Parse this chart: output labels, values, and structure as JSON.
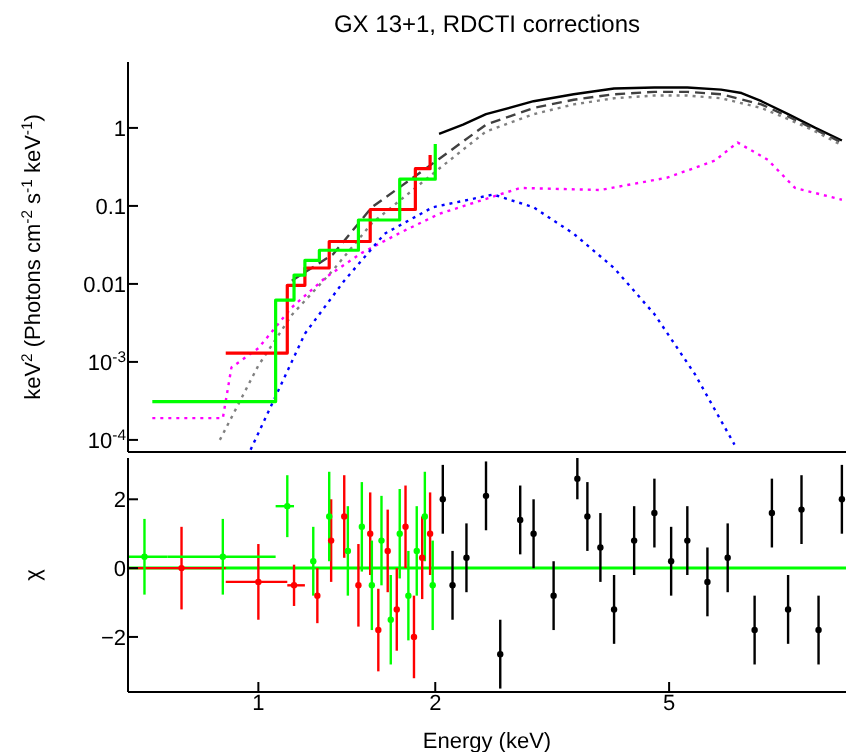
{
  "chart_data": [
    {
      "type": "line",
      "title": "GX 13+1, RDCTI corrections",
      "ylabel": "keV$^{2}$ (Photons cm$^{-2}$ s$^{-1}$ keV$^{-1}$)",
      "log": "xy",
      "xlim": [
        0.6,
        10
      ],
      "xticks": [
        1,
        2,
        5
      ],
      "ylim": [
        7e-05,
        7
      ],
      "yticks": [
        {
          "value": 0.0001,
          "label": "10$^{-4}$"
        },
        {
          "value": 0.001,
          "label": "10$^{-3}$"
        },
        0.01,
        0.1,
        1
      ],
      "tick_labels": "y",
      "marker": "none",
      "series": [
        {
          "color": "#000000",
          "line_style": "solid",
          "x": [
            2.03,
            2.23,
            2.44,
            2.94,
            3.44,
            4.03,
            4.72,
            5.37,
            6.13,
            6.64,
            7.18,
            7.97,
            8.87,
            9.84
          ],
          "values": [
            0.84,
            1.1,
            1.5,
            2.2,
            2.7,
            3.2,
            3.3,
            3.3,
            3.1,
            2.8,
            2.2,
            1.5,
            1.0,
            0.69
          ]
        },
        {
          "color": "#404040",
          "line_style": "dashed",
          "x": [
            1.14,
            1.34,
            1.56,
            2.03,
            2.44,
            2.94,
            3.44,
            4.03,
            4.72,
            5.37,
            6.13,
            7.18,
            7.97,
            8.87,
            9.84
          ],
          "values": [
            0.011,
            0.024,
            0.096,
            0.4,
            1.1,
            1.8,
            2.3,
            2.7,
            2.9,
            2.9,
            2.7,
            2.0,
            1.4,
            0.95,
            0.65
          ]
        },
        {
          "color": "#808080",
          "line_style": "dotted",
          "x": [
            0.86,
            1.0,
            1.14,
            1.34,
            1.56,
            2.03,
            2.44,
            2.94,
            3.44,
            4.03,
            4.72,
            5.37,
            6.13,
            7.18,
            7.97,
            8.87,
            9.84
          ],
          "values": [
            0.0001,
            0.0009,
            0.004,
            0.015,
            0.06,
            0.3,
            0.9,
            1.5,
            2.0,
            2.4,
            2.6,
            2.6,
            2.4,
            1.8,
            1.3,
            0.9,
            0.6
          ]
        },
        {
          "color": "#ff00ff",
          "line_style": "dotted",
          "x": [
            0.66,
            0.87,
            0.9,
            1.0,
            1.14,
            1.3,
            1.5,
            1.74,
            2.03,
            2.79,
            3.82,
            4.96,
            5.98,
            6.54,
            7.36,
            8.19,
            9.84
          ],
          "values": [
            0.00019,
            0.00019,
            0.00085,
            0.0015,
            0.005,
            0.012,
            0.025,
            0.045,
            0.079,
            0.17,
            0.16,
            0.23,
            0.38,
            0.65,
            0.39,
            0.17,
            0.12
          ]
        },
        {
          "color": "#0000ff",
          "line_style": "dotted",
          "x": [
            0.97,
            1.2,
            1.4,
            1.64,
            1.98,
            2.51,
            2.94,
            3.44,
            4.03,
            4.72,
            5.53,
            6.46
          ],
          "values": [
            7.5e-05,
            0.0023,
            0.011,
            0.044,
            0.096,
            0.14,
            0.096,
            0.044,
            0.016,
            0.0041,
            0.0007,
            8.7e-05
          ]
        },
        {
          "type": "step",
          "color": "#ff0000",
          "line_style": "solid",
          "x": [
            0.88,
            1.12,
            1.2,
            1.32,
            1.55,
            1.85,
            1.96
          ],
          "values": [
            0.0013,
            0.0096,
            0.016,
            0.035,
            0.09,
            0.3,
            0.45
          ]
        },
        {
          "type": "step",
          "color": "#00ff00",
          "line_style": "solid",
          "x": [
            0.66,
            1.07,
            1.15,
            1.2,
            1.27,
            1.48,
            1.74,
            2.0
          ],
          "values": [
            0.00031,
            0.0062,
            0.013,
            0.02,
            0.027,
            0.066,
            0.22,
            0.62
          ]
        }
      ]
    },
    {
      "type": "scatter",
      "xlabel": "Energy (keV)",
      "ylabel": "χ",
      "log": "x",
      "xlim": [
        0.6,
        10
      ],
      "xticks": [
        1,
        2,
        5
      ],
      "ylim": [
        -3.6,
        3.2
      ],
      "yticks": [
        {
          "value": -2,
          "label": "−2"
        },
        0,
        2
      ],
      "ref_lines": [
        {
          "axis": "y",
          "value": 0,
          "color": "#00ff00"
        }
      ],
      "series": [
        {
          "color": "#ff0000",
          "x": [
            0.74,
            1.0,
            1.15,
            1.26,
            1.33,
            1.4,
            1.48,
            1.55,
            1.6,
            1.66,
            1.72,
            1.78,
            1.84,
            1.9,
            1.96
          ],
          "values": [
            0,
            -0.4,
            -0.5,
            -0.8,
            0.8,
            1.5,
            -0.5,
            1.0,
            -1.8,
            0.5,
            -1.2,
            1.2,
            -2.0,
            0.3,
            1.0
          ],
          "errors": [
            1.2,
            1.1,
            0.6,
            0.8,
            1.2,
            1.2,
            1.2,
            1.2,
            1.2,
            1.2,
            1.2,
            1.2,
            1.2,
            1.2,
            1.2
          ],
          "xerrors": [
            [
              0.6,
              0.88
            ],
            [
              0.88,
              1.12
            ],
            [
              1.12,
              1.2
            ],
            null,
            null,
            null,
            null,
            null,
            null,
            null,
            null,
            null,
            null,
            null,
            null
          ]
        },
        {
          "color": "#00ff00",
          "x": [
            0.64,
            0.87,
            1.12,
            1.24,
            1.32,
            1.42,
            1.5,
            1.56,
            1.62,
            1.68,
            1.74,
            1.8,
            1.86,
            1.92,
            1.98
          ],
          "values": [
            0.33,
            0.33,
            1.8,
            0.2,
            1.5,
            0.5,
            1.2,
            -0.5,
            0.8,
            -1.5,
            1.0,
            -0.8,
            0.5,
            1.5,
            -0.5
          ],
          "errors": [
            1.1,
            1.1,
            0.9,
            1.0,
            1.3,
            1.3,
            1.3,
            1.3,
            1.3,
            1.3,
            1.3,
            1.3,
            1.3,
            1.3,
            1.3
          ],
          "xerrors": [
            [
              0.6,
              0.7
            ],
            [
              0.7,
              1.07
            ],
            [
              1.07,
              1.15
            ],
            null,
            null,
            null,
            null,
            null,
            null,
            null,
            null,
            null,
            null,
            null,
            null
          ]
        },
        {
          "color": "#000000",
          "x": [
            2.06,
            2.14,
            2.26,
            2.44,
            2.58,
            2.79,
            2.94,
            3.18,
            3.49,
            3.63,
            3.82,
            4.03,
            4.36,
            4.72,
            5.04,
            5.37,
            5.81,
            6.29,
            6.99,
            7.48,
            7.97,
            8.4,
            8.98,
            9.84
          ],
          "values": [
            2.0,
            -0.5,
            0.3,
            2.1,
            -2.5,
            1.4,
            1.0,
            -0.8,
            2.6,
            1.5,
            0.6,
            -1.2,
            0.8,
            1.6,
            0.2,
            0.8,
            -0.4,
            0.3,
            -1.8,
            1.6,
            -1.2,
            1.7,
            -1.8,
            2.0
          ],
          "errors": [
            1,
            1,
            1,
            1,
            1,
            1,
            1,
            1,
            0.6,
            1,
            1,
            1,
            1,
            1,
            1,
            1,
            1,
            1,
            1,
            1,
            1,
            1,
            1,
            1
          ]
        }
      ]
    }
  ]
}
